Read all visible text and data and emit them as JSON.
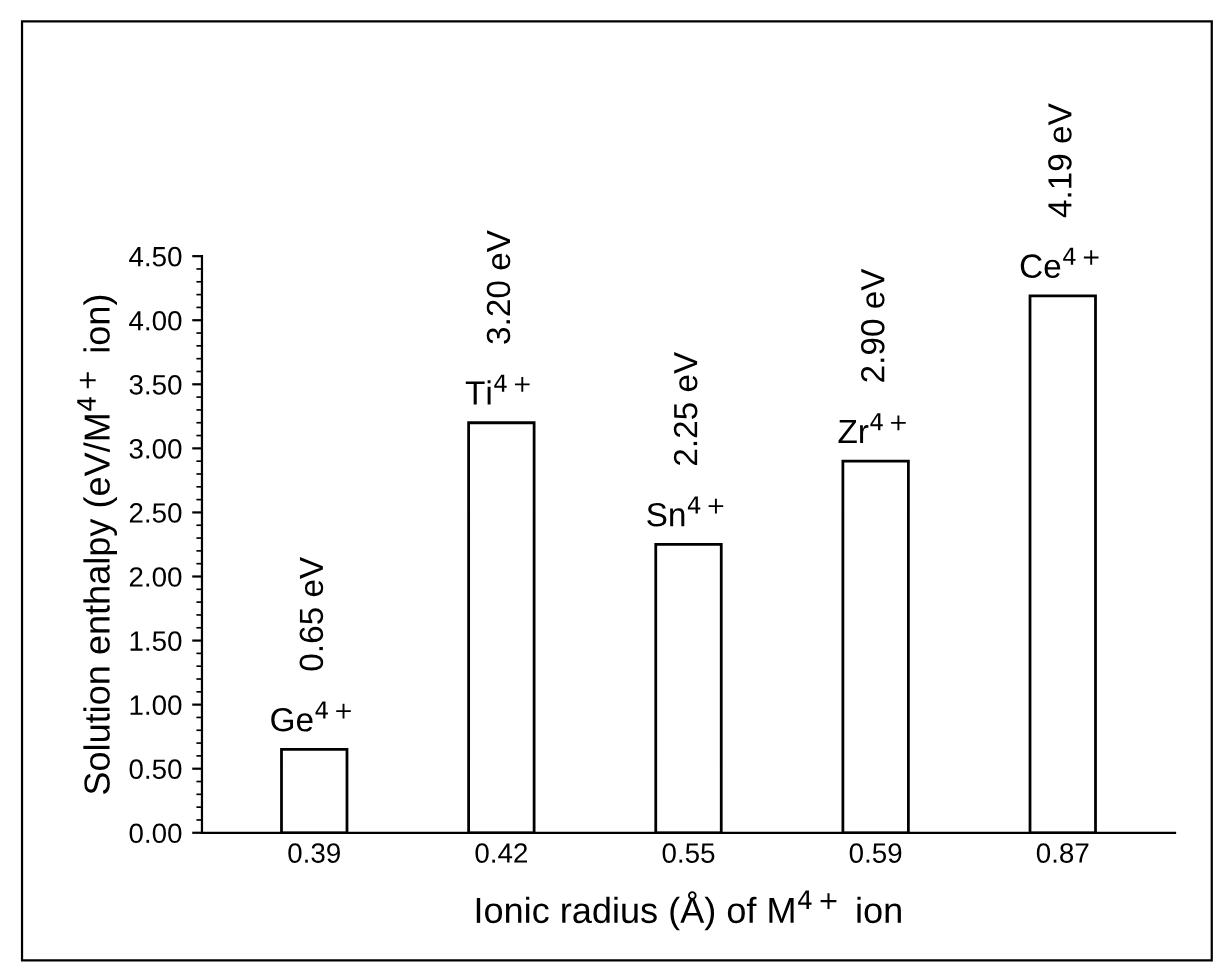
{
  "chart_data": {
    "type": "bar",
    "xlabel": "Ionic radius (Å) of M$^{4+}$ ion",
    "ylabel": "Solution enthalpy (eV/M$^{4+}$ ion)",
    "categories": [
      "0.39",
      "0.42",
      "0.55",
      "0.59",
      "0.87"
    ],
    "values": [
      0.65,
      3.2,
      2.25,
      2.9,
      4.19
    ],
    "value_labels": [
      "0.65 eV",
      "3.20 eV",
      "2.25 eV",
      "2.90 eV",
      "4.19 eV"
    ],
    "color": "#ffffff",
    "annotations": [
      {
        "text": "Ge$^{4+}$",
        "x": "0.39",
        "y": 0.65
      },
      {
        "text": "Ti$^{4+}$",
        "x": "0.42",
        "y": 3.2
      },
      {
        "text": "Sn$^{4+}$",
        "x": "0.55",
        "y": 2.25
      },
      {
        "text": "Zr$^{4+}$",
        "x": "0.59",
        "y": 2.9
      },
      {
        "text": "Ce$^{4+}$",
        "x": "0.87",
        "y": 4.19
      }
    ],
    "ylim": [
      0,
      4.5
    ],
    "yticks": [
      {
        "value": 0,
        "label": "0.00"
      },
      {
        "value": 0.5,
        "label": "0.50"
      },
      {
        "value": 1,
        "label": "1.00"
      },
      {
        "value": 1.5,
        "label": "1.50"
      },
      {
        "value": 2,
        "label": "2.00"
      },
      {
        "value": 2.5,
        "label": "2.50"
      },
      {
        "value": 3,
        "label": "3.00"
      },
      {
        "value": 3.5,
        "label": "3.50"
      },
      {
        "value": 4,
        "label": "4.00"
      },
      {
        "value": 4.5,
        "label": "4.50"
      }
    ],
    "grid": false,
    "legend": false
  }
}
